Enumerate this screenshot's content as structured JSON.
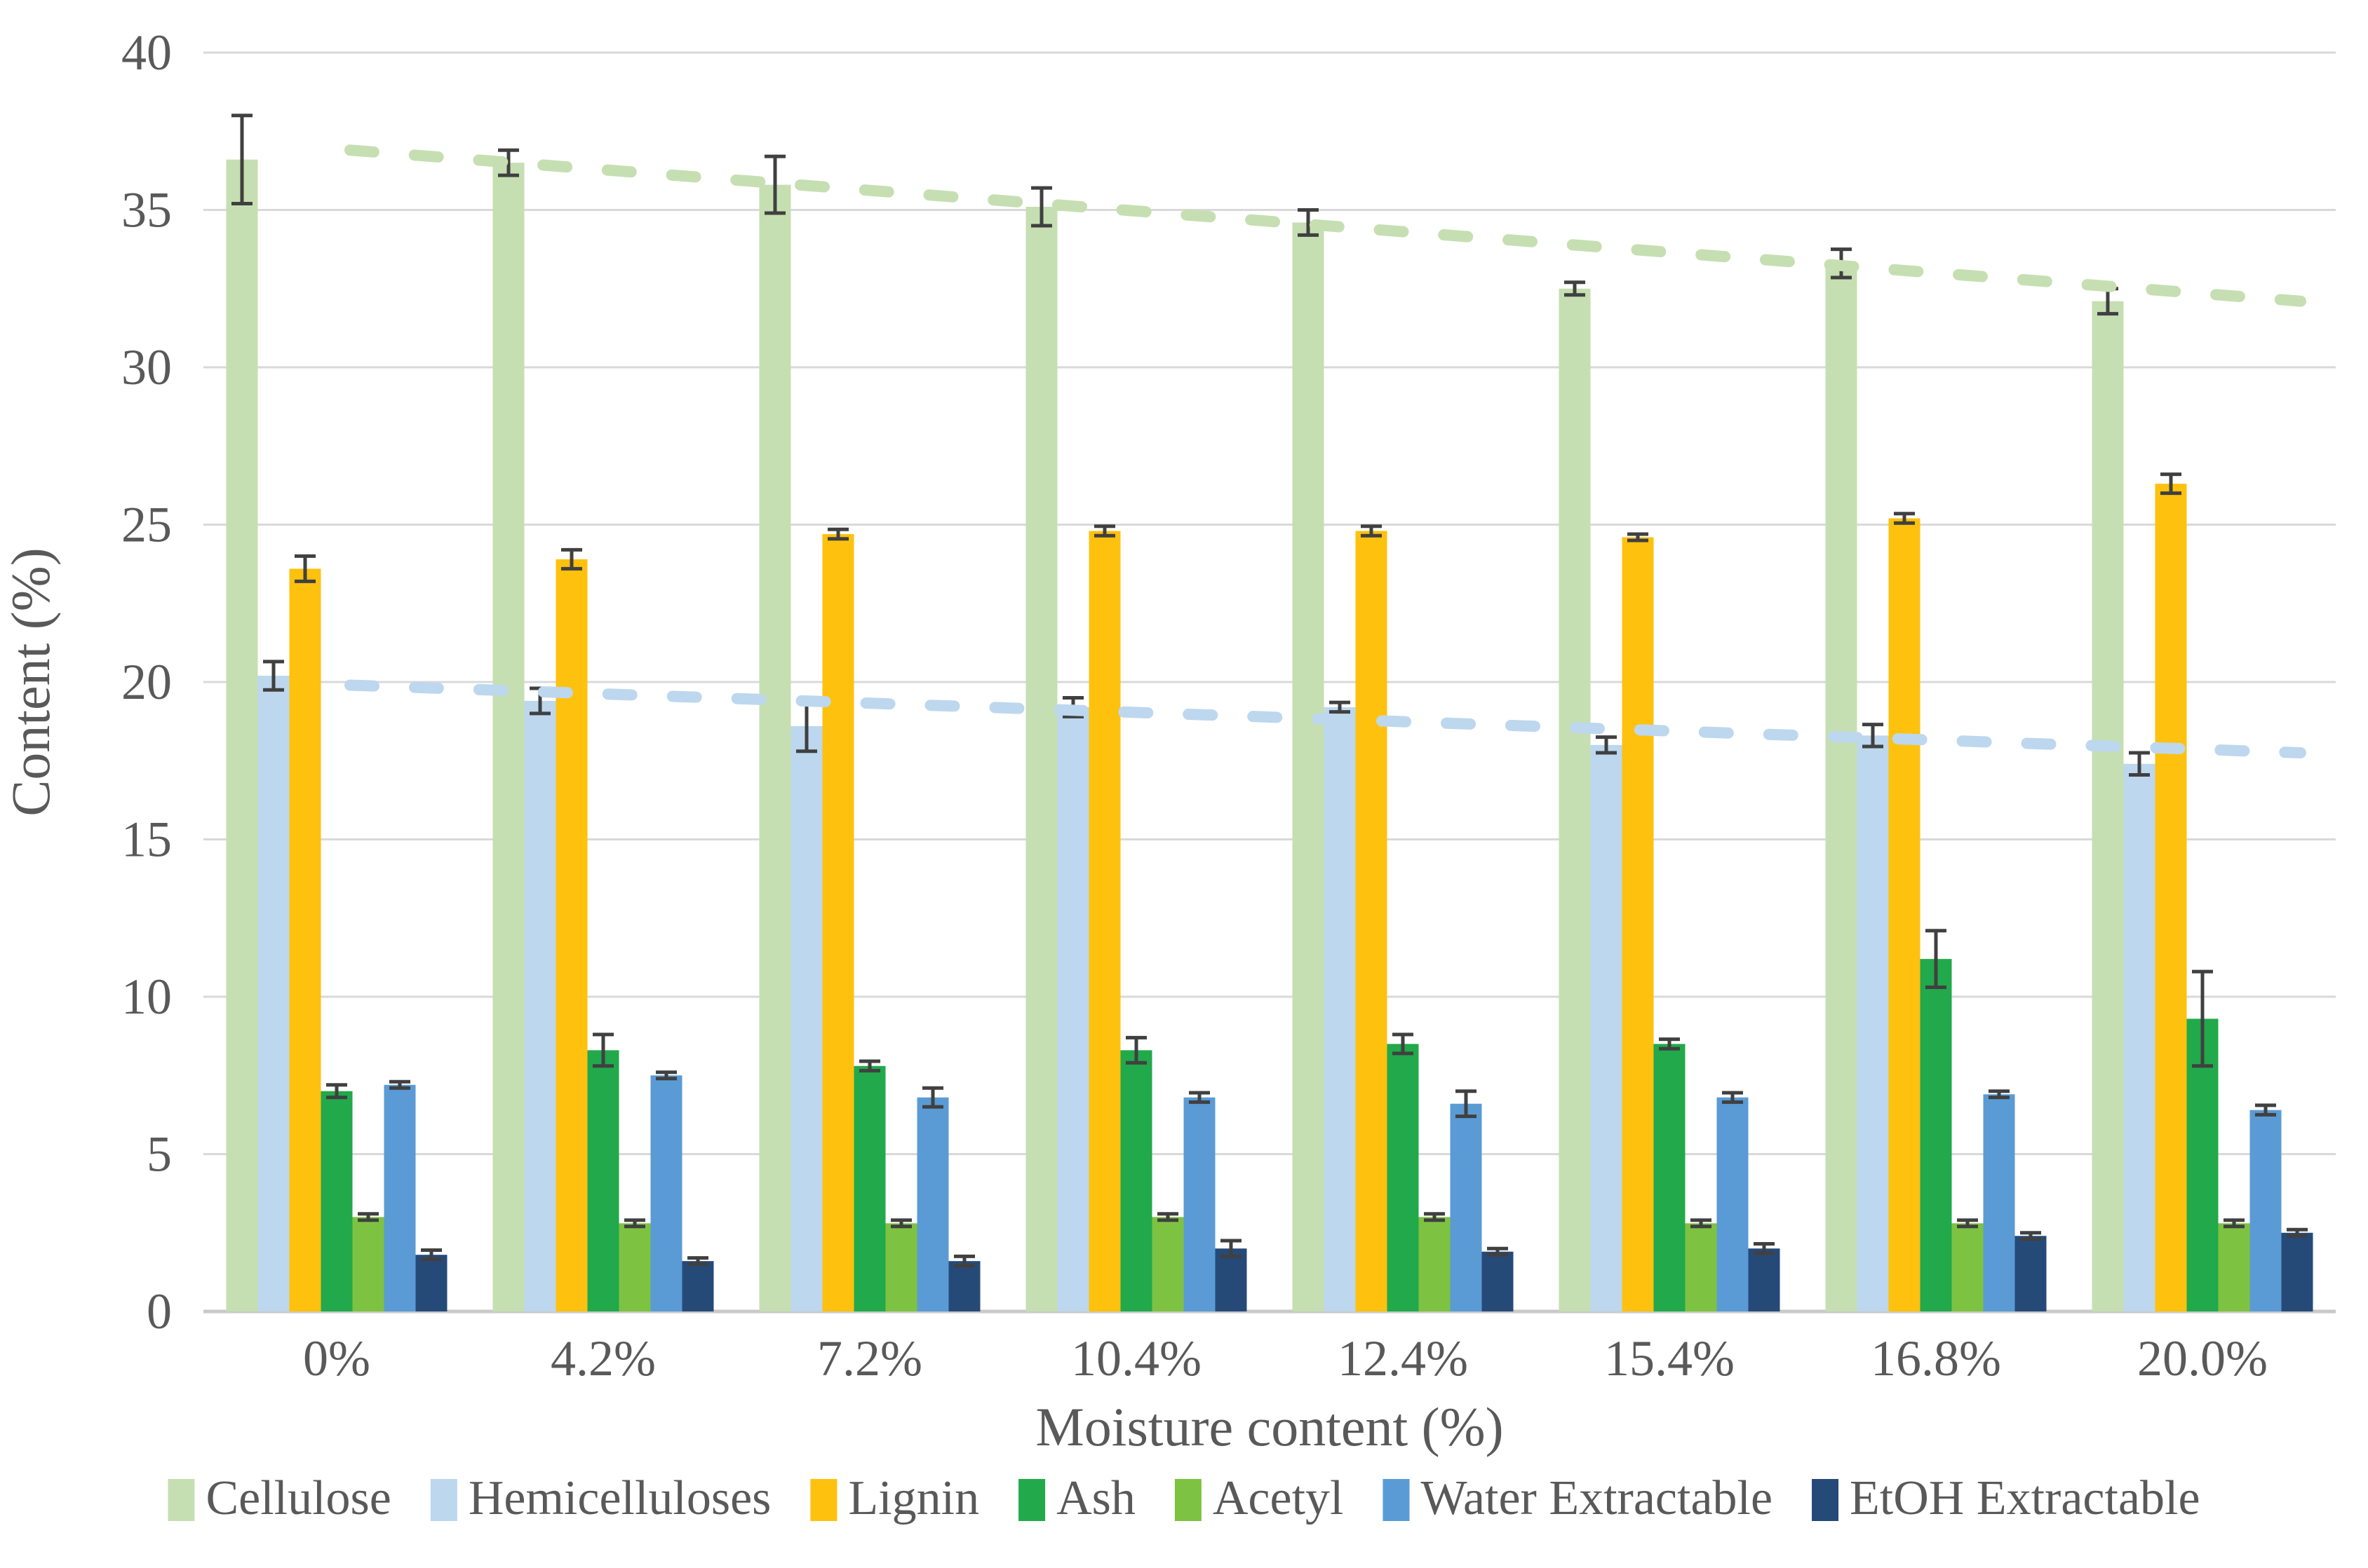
{
  "chart_data": {
    "type": "bar",
    "title": "",
    "xlabel": "Moisture content (%)",
    "ylabel": "Content (%)",
    "ylim": [
      0,
      40
    ],
    "yticks": [
      0,
      5,
      10,
      15,
      20,
      25,
      30,
      35,
      40
    ],
    "grid": true,
    "legend_position": "bottom",
    "categories": [
      "0%",
      "4.2%",
      "7.2%",
      "10.4%",
      "12.4%",
      "15.4%",
      "16.8%",
      "20.0%"
    ],
    "series": [
      {
        "name": "Cellulose",
        "color": "#c6dfb2",
        "values": [
          36.6,
          36.5,
          35.8,
          35.1,
          34.6,
          32.5,
          33.3,
          32.1
        ],
        "errors": [
          1.4,
          0.4,
          0.9,
          0.6,
          0.4,
          0.2,
          0.45,
          0.4
        ]
      },
      {
        "name": "Hemicelluloses",
        "color": "#bdd7ee",
        "values": [
          20.2,
          19.4,
          18.6,
          19.2,
          19.2,
          18.0,
          18.3,
          17.4
        ],
        "errors": [
          0.45,
          0.4,
          0.8,
          0.3,
          0.15,
          0.25,
          0.35,
          0.35
        ]
      },
      {
        "name": "Lignin",
        "color": "#fec10e",
        "values": [
          23.6,
          23.9,
          24.7,
          24.8,
          24.8,
          24.6,
          25.2,
          26.3
        ],
        "errors": [
          0.4,
          0.3,
          0.15,
          0.15,
          0.15,
          0.1,
          0.15,
          0.3
        ]
      },
      {
        "name": "Ash",
        "color": "#21a94b",
        "values": [
          7.0,
          8.3,
          7.8,
          8.3,
          8.5,
          8.5,
          11.2,
          9.3
        ],
        "errors": [
          0.2,
          0.5,
          0.15,
          0.4,
          0.3,
          0.15,
          0.9,
          1.5
        ]
      },
      {
        "name": "Acetyl",
        "color": "#7ec242",
        "values": [
          3.0,
          2.8,
          2.8,
          3.0,
          3.0,
          2.8,
          2.8,
          2.8
        ],
        "errors": [
          0.1,
          0.1,
          0.1,
          0.1,
          0.1,
          0.1,
          0.1,
          0.1
        ]
      },
      {
        "name": "Water Extractable",
        "color": "#5a9bd5",
        "values": [
          7.2,
          7.5,
          6.8,
          6.8,
          6.6,
          6.8,
          6.9,
          6.4
        ],
        "errors": [
          0.1,
          0.1,
          0.3,
          0.15,
          0.4,
          0.15,
          0.1,
          0.15
        ]
      },
      {
        "name": "EtOH Extractable",
        "color": "#264a78",
        "values": [
          1.8,
          1.6,
          1.6,
          2.0,
          1.9,
          2.0,
          2.4,
          2.5
        ],
        "errors": [
          0.15,
          0.1,
          0.15,
          0.25,
          0.1,
          0.15,
          0.1,
          0.1
        ]
      }
    ],
    "trendlines": [
      {
        "series": "Cellulose",
        "style": "dashed",
        "color": "#c6dfb2",
        "start_value": 36.9,
        "end_value": 32.1
      },
      {
        "series": "Hemicelluloses",
        "style": "dashed",
        "color": "#bdd7ee",
        "start_value": 19.9,
        "end_value": 17.75
      }
    ]
  },
  "colors": {
    "gridline": "#d9d9d9",
    "axis_line": "#c9c9c9",
    "error_bar": "#404040",
    "text": "#595959",
    "background": "#ffffff"
  }
}
